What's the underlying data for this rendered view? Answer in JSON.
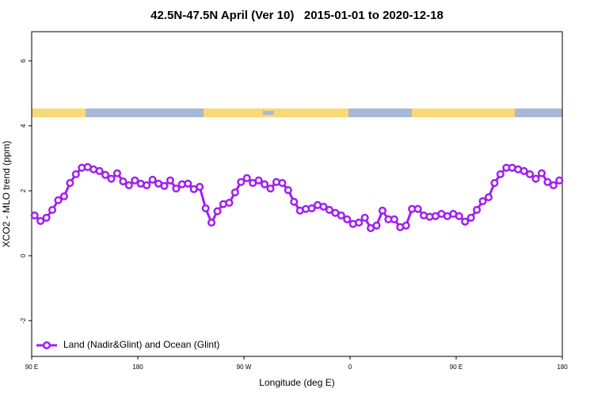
{
  "chart_data": {
    "type": "line",
    "title": "42.5N-47.5N April (Ver 10)   2015-01-01 to 2020-12-18",
    "x_label": "Longitude (deg E)",
    "y_label": "XCO2 - MLO trend (ppm)",
    "xlim": [
      90,
      540
    ],
    "xticks": [
      {
        "value": 90,
        "label": "90 E"
      },
      180,
      {
        "value": 270,
        "label": "90 W"
      },
      {
        "value": 360,
        "label": "0"
      },
      {
        "value": 450,
        "label": "90 E"
      },
      {
        "value": 540,
        "label": "180"
      }
    ],
    "ylim": [
      -3.1,
      6.9
    ],
    "yticks": [
      -2,
      0,
      2,
      4,
      6
    ],
    "grid": false,
    "legend": "bottom-left",
    "x": [
      92.5,
      97.5,
      102.5,
      107.5,
      112.5,
      117.5,
      122.5,
      127.5,
      132.5,
      137.5,
      142.5,
      147.5,
      152.5,
      157.5,
      162.5,
      167.5,
      172.5,
      177.5,
      182.5,
      187.5,
      192.5,
      197.5,
      202.5,
      207.5,
      212.5,
      217.5,
      222.5,
      227.5,
      232.5,
      237.5,
      242.5,
      247.5,
      252.5,
      257.5,
      262.5,
      267.5,
      272.5,
      277.5,
      282.5,
      287.5,
      292.5,
      297.5,
      302.5,
      307.5,
      312.5,
      317.5,
      322.5,
      327.5,
      332.5,
      337.5,
      342.5,
      347.5,
      352.5,
      357.5,
      362.5,
      367.5,
      372.5,
      377.5,
      382.5,
      387.5,
      392.5,
      397.5,
      402.5,
      407.5,
      412.5,
      417.5,
      422.5,
      427.5,
      432.5,
      437.5,
      442.5,
      447.5,
      452.5,
      457.5,
      462.5,
      467.5,
      472.5,
      477.5,
      482.5,
      487.5,
      492.5,
      497.5,
      502.5,
      507.5,
      512.5,
      517.5,
      522.5,
      527.5,
      532.5,
      537.5
    ],
    "series": [
      {
        "name": "Land (Nadir&Glint) and Ocean (Glint)",
        "color": "#a020f0",
        "values": [
          1.24,
          1.07,
          1.17,
          1.41,
          1.71,
          1.83,
          2.24,
          2.51,
          2.71,
          2.73,
          2.66,
          2.61,
          2.49,
          2.37,
          2.54,
          2.29,
          2.17,
          2.32,
          2.22,
          2.17,
          2.34,
          2.22,
          2.15,
          2.32,
          2.07,
          2.2,
          2.22,
          2.05,
          2.12,
          1.46,
          1.02,
          1.37,
          1.59,
          1.63,
          1.95,
          2.27,
          2.39,
          2.24,
          2.32,
          2.2,
          2.07,
          2.27,
          2.24,
          2.02,
          1.66,
          1.39,
          1.44,
          1.46,
          1.56,
          1.51,
          1.41,
          1.32,
          1.24,
          1.12,
          0.98,
          1.02,
          1.17,
          0.85,
          0.93,
          1.39,
          1.12,
          1.12,
          0.88,
          0.93,
          1.44,
          1.44,
          1.24,
          1.2,
          1.22,
          1.29,
          1.22,
          1.29,
          1.22,
          1.05,
          1.17,
          1.41,
          1.68,
          1.8,
          2.24,
          2.51,
          2.71,
          2.71,
          2.66,
          2.61,
          2.51,
          2.37,
          2.54,
          2.27,
          2.17,
          2.32
        ]
      }
    ]
  }
}
